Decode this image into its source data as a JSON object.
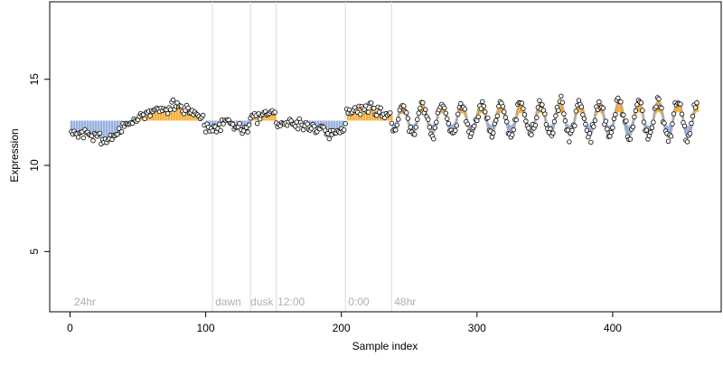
{
  "chart_data": {
    "type": "scatter",
    "title": "",
    "xlabel": "Sample index",
    "ylabel": "Expression",
    "xlim": [
      -15,
      480
    ],
    "ylim": [
      1.5,
      19.5
    ],
    "xticks": [
      0,
      100,
      200,
      300,
      400
    ],
    "yticks": [
      5,
      10,
      15
    ],
    "grid": false,
    "legend": "none",
    "colors": {
      "points_fill": "#ffffff",
      "points_stroke": "#000000",
      "low_bar": "#8eaadb",
      "high_bar": "#f5a623",
      "fit_line": "#8c8c8c",
      "separator": "#d9d9d9",
      "period_label": "#b0b0b0"
    },
    "period_boundaries": [
      105,
      133,
      152,
      203,
      237
    ],
    "period_labels": [
      {
        "x": 3,
        "text": "24hr"
      },
      {
        "x": 107,
        "text": "dawn"
      },
      {
        "x": 133,
        "text": "dusk"
      },
      {
        "x": 153,
        "text": "12:00"
      },
      {
        "x": 205,
        "text": "0:00"
      },
      {
        "x": 239,
        "text": "48hr"
      }
    ],
    "trend": [
      [
        0,
        11.8
      ],
      [
        10,
        11.9
      ],
      [
        20,
        11.6
      ],
      [
        28,
        11.5
      ],
      [
        35,
        11.9
      ],
      [
        45,
        12.5
      ],
      [
        55,
        13.0
      ],
      [
        65,
        13.3
      ],
      [
        75,
        13.4
      ],
      [
        85,
        13.3
      ],
      [
        95,
        12.9
      ],
      [
        104,
        12.0
      ],
      [
        106,
        12.3
      ],
      [
        115,
        12.6
      ],
      [
        125,
        12.2
      ],
      [
        132,
        11.9
      ],
      [
        134,
        12.8
      ],
      [
        143,
        13.0
      ],
      [
        151,
        13.2
      ],
      [
        153,
        12.5
      ],
      [
        170,
        12.4
      ],
      [
        185,
        12.2
      ],
      [
        195,
        11.8
      ],
      [
        202,
        11.9
      ],
      [
        204,
        13.2
      ],
      [
        215,
        13.3
      ],
      [
        225,
        13.2
      ],
      [
        236,
        12.9
      ]
    ],
    "oscillation": {
      "x_start": 238,
      "x_end": 463,
      "period": 14.5,
      "baseline": 12.7,
      "amplitude": 0.8,
      "amplitude_end": 1.05,
      "amplitude_noise": 0.2
    },
    "points_count": 462,
    "noise": 0.32,
    "seed": 7
  }
}
